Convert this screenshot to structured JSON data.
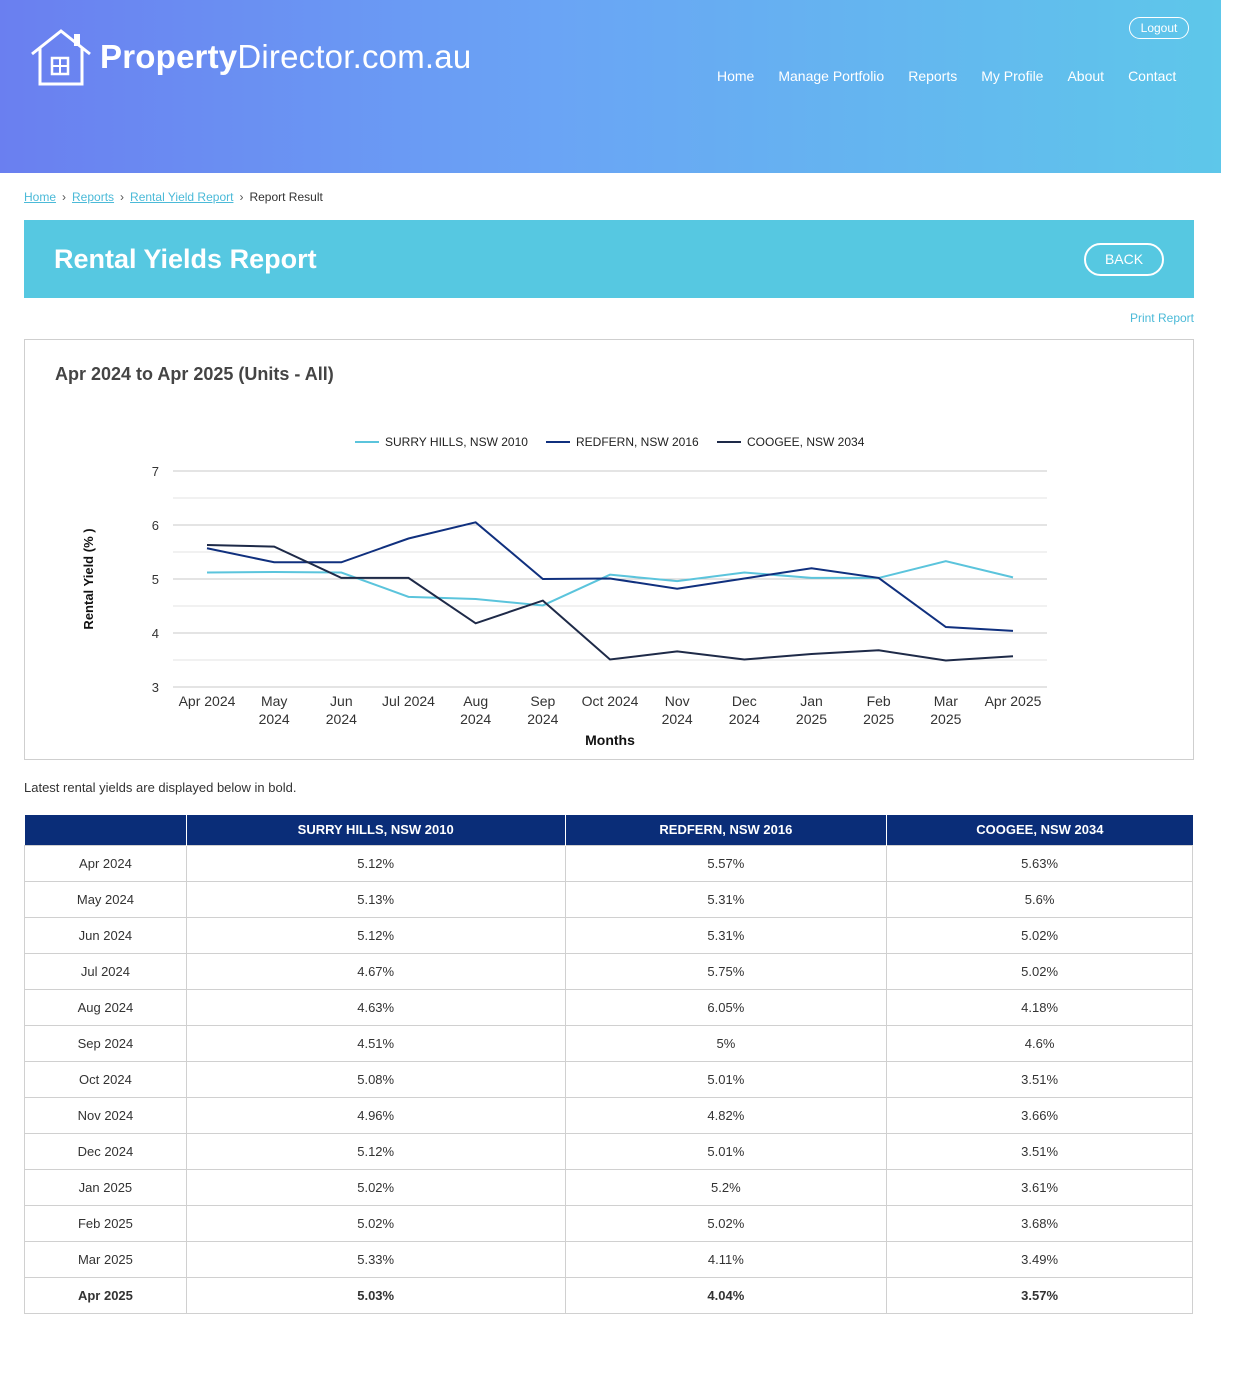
{
  "header": {
    "logo": {
      "bold": "Property",
      "regular": "Director.com.au"
    },
    "logout_label": "Logout",
    "nav": [
      "Home",
      "Manage Portfolio",
      "Reports",
      "My Profile",
      "About",
      "Contact"
    ]
  },
  "breadcrumb": {
    "items": [
      "Home",
      "Reports",
      "Rental Yield Report"
    ],
    "current": "Report Result"
  },
  "banner": {
    "title": "Rental Yields Report",
    "back_label": "BACK"
  },
  "print_label": "Print Report",
  "chart_title": "Apr 2024 to Apr 2025 (Units - All)",
  "chart_data": {
    "type": "line",
    "xlabel": "Months",
    "ylabel": "Rental Yield (% )",
    "ylim": [
      3,
      7
    ],
    "yticks": [
      3,
      4,
      5,
      6,
      7
    ],
    "grid": true,
    "legend_position": "top",
    "categories": [
      "Apr 2024",
      "May 2024",
      "Jun 2024",
      "Jul 2024",
      "Aug 2024",
      "Sep 2024",
      "Oct 2024",
      "Nov 2024",
      "Dec 2024",
      "Jan 2025",
      "Feb 2025",
      "Mar 2025",
      "Apr 2025"
    ],
    "series": [
      {
        "name": "SURRY HILLS, NSW 2010",
        "color": "#5bc4dc",
        "values": [
          5.12,
          5.13,
          5.12,
          4.67,
          4.63,
          4.51,
          5.08,
          4.96,
          5.12,
          5.02,
          5.02,
          5.33,
          5.03
        ]
      },
      {
        "name": "REDFERN, NSW 2016",
        "color": "#10307e",
        "values": [
          5.57,
          5.31,
          5.31,
          5.75,
          6.05,
          5.0,
          5.01,
          4.82,
          5.01,
          5.2,
          5.02,
          4.11,
          4.04
        ]
      },
      {
        "name": "COOGEE, NSW 2034",
        "color": "#1e2a48",
        "values": [
          5.63,
          5.6,
          5.02,
          5.02,
          4.18,
          4.6,
          3.51,
          3.66,
          3.51,
          3.61,
          3.68,
          3.49,
          3.57
        ]
      }
    ]
  },
  "note": "Latest rental yields are displayed below in bold.",
  "table": {
    "headers": [
      "",
      "SURRY HILLS, NSW 2010",
      "REDFERN, NSW 2016",
      "COOGEE, NSW 2034"
    ],
    "rows": [
      [
        "Apr 2024",
        "5.12%",
        "5.57%",
        "5.63%"
      ],
      [
        "May 2024",
        "5.13%",
        "5.31%",
        "5.6%"
      ],
      [
        "Jun 2024",
        "5.12%",
        "5.31%",
        "5.02%"
      ],
      [
        "Jul 2024",
        "4.67%",
        "5.75%",
        "5.02%"
      ],
      [
        "Aug 2024",
        "4.63%",
        "6.05%",
        "4.18%"
      ],
      [
        "Sep 2024",
        "4.51%",
        "5%",
        "4.6%"
      ],
      [
        "Oct 2024",
        "5.08%",
        "5.01%",
        "3.51%"
      ],
      [
        "Nov 2024",
        "4.96%",
        "4.82%",
        "3.66%"
      ],
      [
        "Dec 2024",
        "5.12%",
        "5.01%",
        "3.51%"
      ],
      [
        "Jan 2025",
        "5.02%",
        "5.2%",
        "3.61%"
      ],
      [
        "Feb 2025",
        "5.02%",
        "5.02%",
        "3.68%"
      ],
      [
        "Mar 2025",
        "5.33%",
        "4.11%",
        "3.49%"
      ],
      [
        "Apr 2025",
        "5.03%",
        "4.04%",
        "3.57%"
      ]
    ]
  }
}
